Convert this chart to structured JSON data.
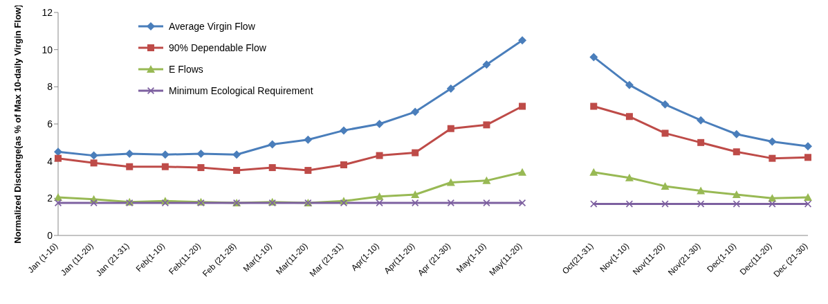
{
  "chart_data": {
    "type": "line",
    "ylabel": "Normalized Discharge(as % of Max 10-daily Virgin Flow)",
    "categories": [
      "Jan (1-10)",
      "Jan (11-20)",
      "Jan (21-31)",
      "Feb(1-10)",
      "Feb(11-20)",
      "Feb (21-28)",
      "Mar(1-10)",
      "Mar(11-20)",
      "Mar (21-31)",
      "Apr(1-10)",
      "Apr(11-20)",
      "Apr (21-30)",
      "May(1-10)",
      "May(11-20)",
      null,
      "Oct(21-31)",
      "Nov(1-10)",
      "Nov(11-20)",
      "Nov(21-30)",
      "Dec(1-10)",
      "Dec(11-20)",
      "Dec (21-30)"
    ],
    "series": [
      {
        "name": "Average Virgin Flow",
        "color": "#4a7ebb",
        "marker": "diamond",
        "values": [
          4.5,
          4.3,
          4.4,
          4.35,
          4.4,
          4.35,
          4.9,
          5.15,
          5.65,
          6.0,
          6.65,
          7.9,
          9.2,
          10.5,
          null,
          9.6,
          8.1,
          7.05,
          6.2,
          5.45,
          5.05,
          4.8
        ]
      },
      {
        "name": "90% Dependable Flow",
        "color": "#be4b48",
        "marker": "square",
        "values": [
          4.15,
          3.9,
          3.7,
          3.7,
          3.65,
          3.5,
          3.65,
          3.5,
          3.8,
          4.3,
          4.45,
          5.75,
          5.95,
          6.95,
          null,
          6.95,
          6.4,
          5.5,
          5.0,
          4.5,
          4.15,
          4.2
        ]
      },
      {
        "name": "E Flows",
        "color": "#98b954",
        "marker": "triangle",
        "values": [
          2.05,
          1.95,
          1.8,
          1.85,
          1.8,
          1.75,
          1.8,
          1.75,
          1.85,
          2.1,
          2.2,
          2.85,
          2.95,
          3.4,
          null,
          3.4,
          3.1,
          2.65,
          2.4,
          2.2,
          2.0,
          2.05
        ]
      },
      {
        "name": "Minimum Ecological Requirement",
        "color": "#7d60a0",
        "marker": "cross",
        "values": [
          1.75,
          1.75,
          1.75,
          1.75,
          1.75,
          1.75,
          1.75,
          1.75,
          1.75,
          1.75,
          1.75,
          1.75,
          1.75,
          1.75,
          null,
          1.7,
          1.7,
          1.7,
          1.7,
          1.7,
          1.7,
          1.7
        ]
      }
    ],
    "ylim": [
      0,
      12
    ],
    "yticks": [
      0,
      2,
      4,
      6,
      8,
      10,
      12
    ],
    "grid": false,
    "legend": "top left",
    "line_style": "solid"
  }
}
